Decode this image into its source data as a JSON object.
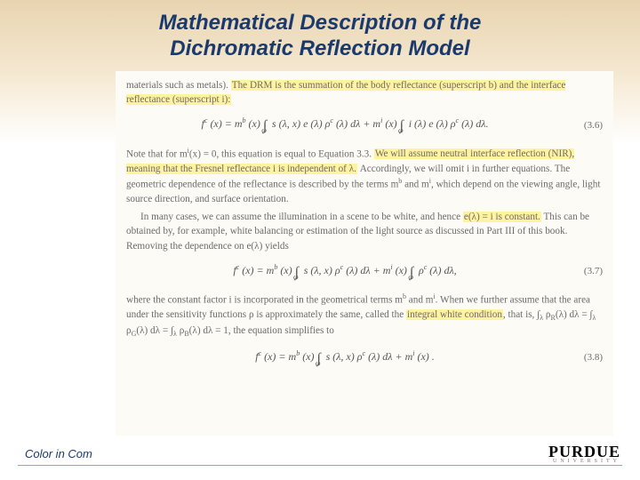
{
  "title_line1": "Mathematical Description of the",
  "title_line2": "Dichromatic Reflection Model",
  "para1_pre": "materials such as metals). ",
  "para1_hl": "The DRM is the summation of the body reflectance (superscript b) and the interface reflectance (superscript i):",
  "eq36_lhs": "f",
  "eq36_c": "c",
  "eq36_x": "(x) = m",
  "eq36_b": "b",
  "eq36_mid1": "(x) ",
  "eq36_int1": "∫",
  "eq36_om": "ω",
  "eq36_body1": " s (λ, x) e (λ) ρ",
  "eq36_body2": " (λ) dλ + m",
  "eq36_i": "i",
  "eq36_body3": "(x) ",
  "eq36_body4": " i (λ) e (λ) ρ",
  "eq36_body5": " (λ) dλ.",
  "eq36_num": "(3.6)",
  "para2a": "Note that for m",
  "para2b": "(x) = 0, this equation is equal to Equation 3.3. ",
  "para2_hl": "We will assume neutral interface reflection (NIR), meaning that the Fresnel reflectance i is independent of λ.",
  "para2c": " Accordingly, we will omit i in further equations. The geometric dependence of the reflectance is described by the terms m",
  "para2d": " and m",
  "para2e": ", which depend on the viewing angle, light source direction, and surface orientation.",
  "para3a": "In many cases, we can assume the illumination in a scene to be white, and hence ",
  "para3_hl": "e(λ) = i is constant.",
  "para3b": " This can be obtained by, for example, white balancing or estimation of the light source as discussed in Part III of this book. Removing the dependence on e(λ) yields",
  "eq37_body1": " s (λ, x) ρ",
  "eq37_body2": " (λ) dλ + m",
  "eq37_body3": " ρ",
  "eq37_body4": " (λ) dλ,",
  "eq37_num": "(3.7)",
  "para4a": "where the constant factor i is incorporated in the geometrical terms m",
  "para4b": " and m",
  "para4c": ". When we further assume that the area under the sensitivity functions ρ is approximately the same, called the ",
  "para4_hl": "integral white condition",
  "para4d": ", that is, ∫",
  "para4_lam": "λ",
  "para4e": " ρ",
  "para4_R": "R",
  "para4f": "(λ) dλ = ∫",
  "para4g": " ρ",
  "para4_G": "G",
  "para4h": "(λ) dλ = ∫",
  "para4i": " ρ",
  "para4_B": "B",
  "para4j": "(λ) dλ = 1, the equation simplifies to",
  "eq38_body1": " s (λ, x) ρ",
  "eq38_body2": " (λ) dλ + m",
  "eq38_body3": " (x) .",
  "eq38_num": "(3.8)",
  "footer_left": "Color in Com",
  "logo_main": "PURDUE",
  "logo_sub": "UNIVERSITY"
}
